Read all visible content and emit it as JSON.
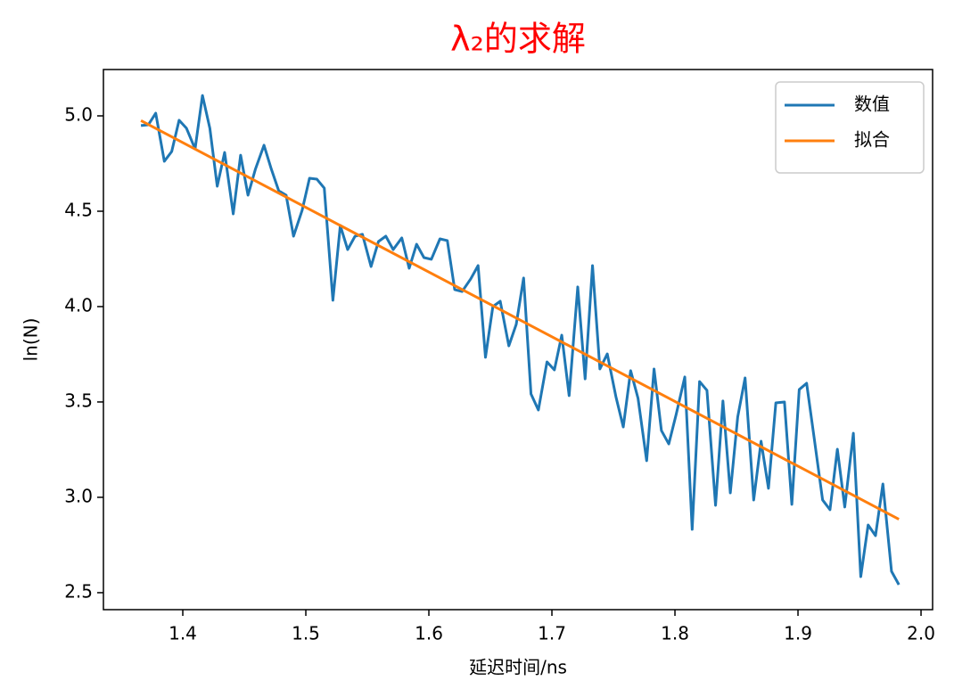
{
  "chart_data": {
    "type": "line",
    "title": "λ₂的求解",
    "title_color": "#ff0000",
    "x_label": "延迟时间/ns",
    "y_label": "ln(N)",
    "xlim": [
      1.3355,
      2.0094
    ],
    "ylim": [
      2.411,
      5.243
    ],
    "xticks": [
      1.4,
      1.5,
      1.6,
      1.7,
      1.8,
      1.9,
      {
        "value": 2,
        "label": "2.0"
      }
    ],
    "yticks": [
      {
        "value": 2.5,
        "label": "2.5"
      },
      {
        "value": 3,
        "label": "3.0"
      },
      3.5,
      {
        "value": 4,
        "label": "4.0"
      },
      4.5,
      {
        "value": 5,
        "label": "5.0"
      }
    ],
    "grid": false,
    "legend": "upper right",
    "series": [
      {
        "name": "数值",
        "color": "#1f77b4",
        "x": [
          1.366,
          1.372,
          1.378,
          1.385,
          1.391,
          1.397,
          1.403,
          1.41,
          1.416,
          1.422,
          1.428,
          1.434,
          1.441,
          1.447,
          1.453,
          1.459,
          1.466,
          1.472,
          1.478,
          1.484,
          1.49,
          1.497,
          1.503,
          1.509,
          1.515,
          1.522,
          1.528,
          1.534,
          1.54,
          1.546,
          1.553,
          1.559,
          1.565,
          1.571,
          1.578,
          1.584,
          1.59,
          1.596,
          1.602,
          1.609,
          1.615,
          1.621,
          1.627,
          1.634,
          1.64,
          1.646,
          1.652,
          1.658,
          1.665,
          1.671,
          1.677,
          1.683,
          1.689,
          1.696,
          1.702,
          1.708,
          1.714,
          1.721,
          1.727,
          1.733,
          1.739,
          1.745,
          1.752,
          1.758,
          1.764,
          1.77,
          1.777,
          1.783,
          1.789,
          1.795,
          1.801,
          1.808,
          1.814,
          1.82,
          1.826,
          1.833,
          1.839,
          1.845,
          1.851,
          1.857,
          1.864,
          1.87,
          1.876,
          1.882,
          1.889,
          1.895,
          1.901,
          1.907,
          1.913,
          1.92,
          1.926,
          1.932,
          1.938,
          1.945,
          1.951,
          1.957,
          1.963,
          1.969,
          1.976,
          1.982
        ],
        "values": [
          4.949,
          4.953,
          5.014,
          4.762,
          4.813,
          4.977,
          4.935,
          4.827,
          5.107,
          4.935,
          4.631,
          4.808,
          4.486,
          4.794,
          4.584,
          4.72,
          4.846,
          4.72,
          4.607,
          4.584,
          4.369,
          4.505,
          4.673,
          4.668,
          4.621,
          4.033,
          4.425,
          4.299,
          4.369,
          4.379,
          4.21,
          4.341,
          4.369,
          4.299,
          4.36,
          4.201,
          4.327,
          4.257,
          4.248,
          4.355,
          4.346,
          4.089,
          4.079,
          4.145,
          4.215,
          3.734,
          4.0,
          4.028,
          3.794,
          3.907,
          4.15,
          3.542,
          3.458,
          3.71,
          3.668,
          3.85,
          3.533,
          4.103,
          3.621,
          4.215,
          3.673,
          3.752,
          3.528,
          3.369,
          3.664,
          3.519,
          3.192,
          3.673,
          3.35,
          3.28,
          3.435,
          3.631,
          2.832,
          3.607,
          3.561,
          2.958,
          3.505,
          3.023,
          3.421,
          3.626,
          2.986,
          3.294,
          3.047,
          3.495,
          3.5,
          2.963,
          3.565,
          3.598,
          3.318,
          2.986,
          2.935,
          3.252,
          2.949,
          3.336,
          2.584,
          2.855,
          2.799,
          3.07,
          2.612,
          2.542
        ]
      },
      {
        "name": "拟合",
        "color": "#ff7f0e",
        "x": [
          1.366,
          1.982
        ],
        "values": [
          4.975,
          2.885
        ]
      }
    ]
  }
}
